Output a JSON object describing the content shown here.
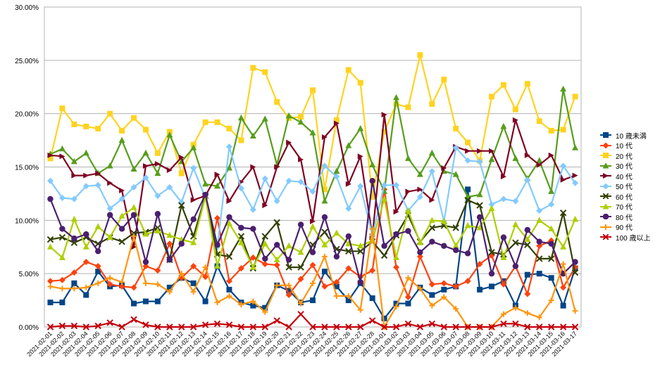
{
  "chart_data": {
    "type": "line",
    "title": "",
    "xlabel": "",
    "ylabel": "",
    "ylim": [
      0,
      30
    ],
    "y_ticks": [
      "0.00%",
      "5.00%",
      "10.00%",
      "15.00%",
      "20.00%",
      "25.00%",
      "30.00%"
    ],
    "grid": "horizontal",
    "legend_position": "right",
    "categories": [
      "2021-02-01",
      "2021-02-02",
      "2021-02-03",
      "2021-02-04",
      "2021-02-05",
      "2021-02-06",
      "2021-02-07",
      "2021-02-08",
      "2021-02-09",
      "2021-02-10",
      "2021-02-11",
      "2021-02-12",
      "2021-02-13",
      "2021-02-14",
      "2021-02-15",
      "2021-02-16",
      "2021-02-17",
      "2021-02-18",
      "2021-02-19",
      "2021-02-20",
      "2021-02-21",
      "2021-02-22",
      "2021-02-23",
      "2021-02-24",
      "2021-02-25",
      "2021-02-26",
      "2021-02-27",
      "2021-02-28",
      "2021-03-01",
      "2021-03-02",
      "2021-03-03",
      "2021-03-04",
      "2021-03-05",
      "2021-03-06",
      "2021-03-07",
      "2021-03-08",
      "2021-03-09",
      "2021-03-10",
      "2021-03-11",
      "2021-03-12",
      "2021-03-13",
      "2021-03-14",
      "2021-03-15",
      "2021-03-16",
      "2021-03-17"
    ],
    "series": [
      {
        "name": "10 歳未満",
        "color": "#004586",
        "marker": "square",
        "values": [
          2.3,
          2.3,
          4.1,
          3.0,
          5.2,
          3.8,
          3.9,
          2.2,
          2.4,
          2.4,
          3.7,
          4.6,
          4.1,
          2.4,
          5.7,
          3.5,
          2.3,
          2.0,
          1.8,
          3.9,
          3.4,
          2.3,
          2.5,
          5.2,
          3.8,
          2.5,
          4.1,
          2.7,
          0.8,
          2.2,
          2.2,
          3.7,
          3.0,
          3.5,
          3.8,
          12.9,
          3.5,
          3.8,
          4.3,
          2.0,
          4.9,
          5.0,
          4.6,
          2.0,
          5.5
        ]
      },
      {
        "name": "10 代",
        "color": "#ff420e",
        "marker": "diamond",
        "values": [
          4.3,
          4.4,
          5.1,
          6.1,
          5.7,
          4.0,
          3.8,
          3.7,
          5.7,
          5.3,
          7.8,
          4.6,
          5.7,
          4.7,
          10.2,
          4.3,
          5.5,
          6.5,
          5.9,
          5.8,
          3.0,
          4.5,
          5.8,
          3.8,
          4.2,
          5.5,
          4.7,
          5.3,
          12.9,
          5.6,
          2.8,
          6.6,
          4.0,
          4.1,
          3.8,
          4.3,
          5.9,
          6.7,
          4.0,
          5.7,
          3.1,
          7.6,
          8.1,
          3.7,
          5.6
        ]
      },
      {
        "name": "20 代",
        "color": "#ffd320",
        "marker": "square",
        "values": [
          15.8,
          20.5,
          19.0,
          18.8,
          18.6,
          20.0,
          18.4,
          19.6,
          18.5,
          16.3,
          18.3,
          14.4,
          17.1,
          19.2,
          19.2,
          18.6,
          17.5,
          24.3,
          23.9,
          21.1,
          19.6,
          19.7,
          22.2,
          12.9,
          19.4,
          24.1,
          22.9,
          12.2,
          18.3,
          20.9,
          20.6,
          25.5,
          20.9,
          23.2,
          18.6,
          17.3,
          15.6,
          21.6,
          22.7,
          20.4,
          22.8,
          19.3,
          18.4,
          18.5,
          21.6
        ]
      },
      {
        "name": "30 代",
        "color": "#579d1c",
        "marker": "triangle",
        "values": [
          16.2,
          16.7,
          15.5,
          16.3,
          14.4,
          15.1,
          17.5,
          14.8,
          16.3,
          14.4,
          18.0,
          15.5,
          16.8,
          13.4,
          13.2,
          14.9,
          19.6,
          17.9,
          19.5,
          15.2,
          19.8,
          19.2,
          18.2,
          11.8,
          14.6,
          17.0,
          18.6,
          15.2,
          12.7,
          21.5,
          15.8,
          14.3,
          16.3,
          14.6,
          14.3,
          12.2,
          12.4,
          15.7,
          18.8,
          15.8,
          13.9,
          15.6,
          12.7,
          22.3,
          16.8
        ]
      },
      {
        "name": "40 代",
        "color": "#7e0021",
        "marker": "dash",
        "values": [
          16.1,
          16.0,
          14.2,
          14.2,
          14.4,
          13.5,
          12.8,
          7.5,
          15.1,
          15.3,
          14.7,
          15.9,
          11.9,
          12.3,
          14.3,
          11.8,
          13.6,
          15.0,
          11.4,
          15.0,
          17.3,
          15.7,
          9.9,
          17.8,
          19.1,
          13.4,
          16.0,
          8.5,
          19.9,
          10.8,
          12.7,
          12.9,
          11.9,
          14.9,
          16.9,
          16.5,
          16.5,
          16.5,
          14.1,
          19.4,
          16.1,
          15.2,
          16.1,
          13.8,
          14.2
        ]
      },
      {
        "name": "50 代",
        "color": "#83caff",
        "marker": "diamond",
        "values": [
          13.7,
          12.1,
          12.0,
          13.2,
          13.3,
          11.1,
          12.0,
          13.1,
          14.0,
          12.3,
          13.1,
          11.7,
          14.9,
          12.1,
          7.5,
          16.9,
          13.0,
          11.0,
          13.9,
          11.8,
          13.7,
          13.6,
          12.7,
          15.1,
          14.1,
          11.1,
          13.2,
          8.6,
          13.3,
          13.3,
          10.9,
          12.2,
          14.6,
          9.9,
          16.8,
          15.6,
          15.5,
          11.5,
          12.0,
          11.8,
          13.8,
          10.9,
          11.5,
          15.1,
          13.5
        ]
      },
      {
        "name": "60 代",
        "color": "#314004",
        "marker": "x",
        "values": [
          8.2,
          8.4,
          7.9,
          8.4,
          7.8,
          8.4,
          8.0,
          8.8,
          8.9,
          9.3,
          6.3,
          11.4,
          8.5,
          12.3,
          6.8,
          6.6,
          8.5,
          5.5,
          8.5,
          9.8,
          5.6,
          5.6,
          7.7,
          8.9,
          7.3,
          7.1,
          7.1,
          8.0,
          6.7,
          8.6,
          10.5,
          8.0,
          9.3,
          9.5,
          9.3,
          11.9,
          11.4,
          7.0,
          6.8,
          7.9,
          7.7,
          6.4,
          6.4,
          10.7,
          5.1
        ]
      },
      {
        "name": "70 代",
        "color": "#aecf00",
        "marker": "triangle",
        "values": [
          7.5,
          6.5,
          10.1,
          7.5,
          9.4,
          8.4,
          10.4,
          11.2,
          8.7,
          9.0,
          8.6,
          8.2,
          7.9,
          12.2,
          5.7,
          9.7,
          7.9,
          5.6,
          7.8,
          6.3,
          7.6,
          7.0,
          9.4,
          7.7,
          8.8,
          7.8,
          7.6,
          8.1,
          12.0,
          6.5,
          10.9,
          7.9,
          10.0,
          9.9,
          7.6,
          9.5,
          9.3,
          11.1,
          6.5,
          9.6,
          8.2,
          10.0,
          9.2,
          7.5,
          10.1
        ]
      },
      {
        "name": "80 代",
        "color": "#4b1f6f",
        "marker": "circle",
        "values": [
          12.0,
          9.2,
          8.3,
          8.7,
          7.1,
          10.5,
          9.2,
          10.5,
          6.1,
          10.6,
          6.3,
          7.8,
          10.1,
          12.4,
          7.7,
          10.3,
          9.3,
          9.2,
          6.4,
          7.7,
          6.3,
          9.6,
          7.0,
          10.3,
          6.6,
          8.5,
          4.2,
          13.7,
          7.6,
          8.7,
          9.0,
          7.0,
          8.0,
          7.6,
          7.2,
          6.9,
          10.3,
          5.0,
          8.4,
          5.7,
          9.1,
          8.0,
          7.8,
          5.0,
          6.1
        ]
      },
      {
        "name": "90 代",
        "color": "#ff950e",
        "marker": "plus",
        "values": [
          3.8,
          3.6,
          3.6,
          3.7,
          4.1,
          4.6,
          4.2,
          8.5,
          4.1,
          4.0,
          3.3,
          5.0,
          3.3,
          5.6,
          2.3,
          2.9,
          2.1,
          2.4,
          1.4,
          3.9,
          3.9,
          2.2,
          4.1,
          6.6,
          2.9,
          2.9,
          1.6,
          9.2,
          0.0,
          1.9,
          4.6,
          3.6,
          2.0,
          2.8,
          1.7,
          0.0,
          0.0,
          0.0,
          1.2,
          1.8,
          1.3,
          0.9,
          2.5,
          5.9,
          1.5
        ]
      },
      {
        "name": "100 歳以上",
        "color": "#c5000b",
        "marker": "x",
        "values": [
          0.0,
          0.1,
          0.1,
          0.0,
          0.1,
          0.4,
          0.0,
          0.7,
          0.2,
          0.0,
          0.0,
          0.0,
          0.0,
          0.2,
          0.3,
          0.2,
          0.0,
          0.0,
          0.0,
          0.6,
          0.0,
          1.2,
          0.0,
          0.0,
          0.0,
          0.0,
          0.0,
          0.6,
          0.0,
          0.0,
          0.3,
          0.0,
          0.3,
          0.0,
          0.0,
          0.0,
          0.0,
          0.0,
          0.3,
          0.3,
          0.0,
          0.0,
          0.0,
          0.0,
          0.0
        ]
      }
    ]
  }
}
